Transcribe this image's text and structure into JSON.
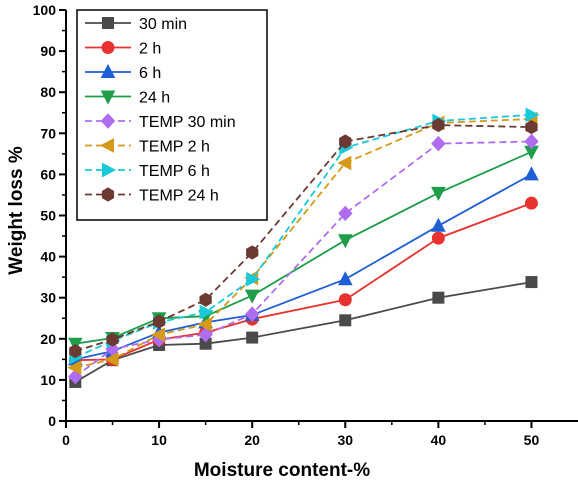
{
  "chart_data": {
    "type": "line",
    "title": "",
    "xlabel": "Moisture content-%",
    "ylabel": "Weight loss %",
    "xlim": [
      0,
      55
    ],
    "ylim": [
      0,
      100
    ],
    "xticks": [
      0,
      10,
      20,
      30,
      40,
      50
    ],
    "yticks": [
      0,
      10,
      20,
      30,
      40,
      50,
      60,
      70,
      80,
      90,
      100
    ],
    "grid": false,
    "legend_position": "top-left",
    "x": [
      1,
      5,
      10,
      15,
      20,
      30,
      40,
      50
    ],
    "series": [
      {
        "name": "30 min",
        "color": "#4a4a4a",
        "marker": "square",
        "dash": "solid",
        "values": [
          9.5,
          14.8,
          18.5,
          18.8,
          20.3,
          24.5,
          30.0,
          33.8
        ]
      },
      {
        "name": "2 h",
        "color": "#e8322f",
        "marker": "circle",
        "dash": "solid",
        "values": [
          14.8,
          15.0,
          19.8,
          21.5,
          24.8,
          29.5,
          44.5,
          53.0
        ]
      },
      {
        "name": "6 h",
        "color": "#1f5fd6",
        "marker": "triangle-up",
        "dash": "solid",
        "values": [
          15.0,
          17.0,
          21.5,
          24.0,
          25.8,
          34.5,
          47.5,
          60.0
        ]
      },
      {
        "name": "24 h",
        "color": "#1f9e4a",
        "marker": "triangle-down",
        "dash": "solid",
        "values": [
          18.8,
          20.2,
          25.0,
          25.5,
          30.5,
          44.0,
          55.5,
          65.5
        ]
      },
      {
        "name": "TEMP 30 min",
        "color": "#b06cf0",
        "marker": "diamond",
        "dash": "dashed",
        "values": [
          10.8,
          17.5,
          19.8,
          21.0,
          26.0,
          50.5,
          67.5,
          68.0
        ]
      },
      {
        "name": "TEMP 2 h",
        "color": "#d49a18",
        "marker": "triangle-left",
        "dash": "dashed",
        "values": [
          13.0,
          15.0,
          21.0,
          23.5,
          34.8,
          62.8,
          72.5,
          73.5
        ]
      },
      {
        "name": "TEMP 6 h",
        "color": "#19c9d9",
        "marker": "triangle-right",
        "dash": "dashed",
        "values": [
          15.5,
          19.5,
          24.0,
          26.5,
          34.5,
          66.5,
          73.0,
          74.5
        ]
      },
      {
        "name": "TEMP 24 h",
        "color": "#6b3a33",
        "marker": "hexagon",
        "dash": "dashed",
        "values": [
          17.0,
          19.8,
          24.2,
          29.5,
          41.0,
          68.0,
          72.0,
          71.5
        ]
      }
    ]
  }
}
